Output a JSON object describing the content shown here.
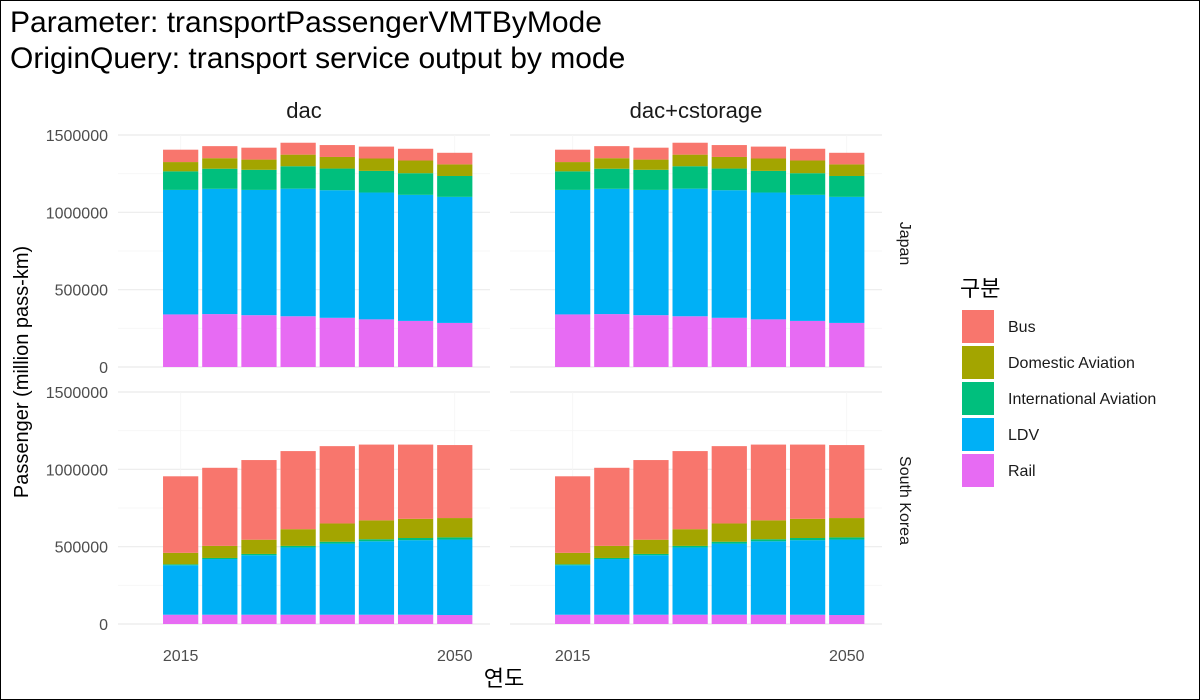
{
  "header": {
    "title_line1": "Parameter: transportPassengerVMTByMode",
    "title_line2": "OriginQuery: transport service output by mode"
  },
  "chart_data": {
    "type": "bar",
    "stacked": true,
    "xlabel": "연도",
    "ylabel": "Passenger (million pass-km)",
    "x": [
      2015,
      2020,
      2025,
      2030,
      2035,
      2040,
      2045,
      2050
    ],
    "x_tick_labels": [
      "2015",
      "2050"
    ],
    "x_ticks": [
      2015,
      2050
    ],
    "ylim": [
      0,
      1500000
    ],
    "y_ticks": [
      0,
      500000,
      1000000,
      1500000
    ],
    "y_tick_labels": [
      "0",
      "500000",
      "1000000",
      "1500000"
    ],
    "legend": {
      "title": "구분",
      "position": "right",
      "entries": [
        "Bus",
        "Domestic Aviation",
        "International Aviation",
        "LDV",
        "Rail"
      ]
    },
    "colors": {
      "Bus": "#F8766D",
      "Domestic Aviation": "#A3A500",
      "International Aviation": "#00BF7D",
      "LDV": "#00B0F6",
      "Rail": "#E76BF3"
    },
    "facet_columns": [
      "dac",
      "dac+cstorage"
    ],
    "facet_rows": [
      "Japan",
      "South Korea"
    ],
    "panels": [
      {
        "column": "dac",
        "row": "Japan",
        "series": [
          {
            "name": "Rail",
            "values": [
              340000,
              342000,
              335000,
              328000,
              318000,
              308000,
              298000,
              285000
            ]
          },
          {
            "name": "LDV",
            "values": [
              805000,
              810000,
              810000,
              825000,
              825000,
              820000,
              815000,
              815000
            ]
          },
          {
            "name": "International Aviation",
            "values": [
              120000,
              130000,
              130000,
              145000,
              140000,
              140000,
              140000,
              135000
            ]
          },
          {
            "name": "Domestic Aviation",
            "values": [
              60000,
              68000,
              66000,
              75000,
              75000,
              80000,
              82000,
              75000
            ]
          },
          {
            "name": "Bus",
            "values": [
              80000,
              78000,
              77000,
              77000,
              77000,
              77000,
              76000,
              75000
            ]
          }
        ]
      },
      {
        "column": "dac+cstorage",
        "row": "Japan",
        "series": [
          {
            "name": "Rail",
            "values": [
              340000,
              342000,
              335000,
              328000,
              318000,
              308000,
              298000,
              285000
            ]
          },
          {
            "name": "LDV",
            "values": [
              805000,
              810000,
              810000,
              825000,
              825000,
              820000,
              815000,
              815000
            ]
          },
          {
            "name": "International Aviation",
            "values": [
              120000,
              130000,
              130000,
              145000,
              140000,
              140000,
              140000,
              135000
            ]
          },
          {
            "name": "Domestic Aviation",
            "values": [
              60000,
              68000,
              66000,
              75000,
              75000,
              80000,
              82000,
              75000
            ]
          },
          {
            "name": "Bus",
            "values": [
              80000,
              78000,
              77000,
              77000,
              77000,
              77000,
              76000,
              75000
            ]
          }
        ]
      },
      {
        "column": "dac",
        "row": "South Korea",
        "series": [
          {
            "name": "Rail",
            "values": [
              60000,
              60000,
              60000,
              60000,
              60000,
              60000,
              60000,
              58000
            ]
          },
          {
            "name": "LDV",
            "values": [
              320000,
              360000,
              385000,
              435000,
              460000,
              475000,
              482000,
              488000
            ]
          },
          {
            "name": "International Aviation",
            "values": [
              6000,
              7000,
              8000,
              10000,
              12000,
              13000,
              14000,
              14000
            ]
          },
          {
            "name": "Domestic Aviation",
            "values": [
              74000,
              78000,
              92000,
              108000,
              118000,
              122000,
              124000,
              125000
            ]
          },
          {
            "name": "Bus",
            "values": [
              495000,
              505000,
              515000,
              505000,
              500000,
              490000,
              480000,
              472000
            ]
          }
        ]
      },
      {
        "column": "dac+cstorage",
        "row": "South Korea",
        "series": [
          {
            "name": "Rail",
            "values": [
              60000,
              60000,
              60000,
              60000,
              60000,
              60000,
              60000,
              58000
            ]
          },
          {
            "name": "LDV",
            "values": [
              320000,
              360000,
              385000,
              435000,
              460000,
              475000,
              482000,
              488000
            ]
          },
          {
            "name": "International Aviation",
            "values": [
              6000,
              7000,
              8000,
              10000,
              12000,
              13000,
              14000,
              14000
            ]
          },
          {
            "name": "Domestic Aviation",
            "values": [
              74000,
              78000,
              92000,
              108000,
              118000,
              122000,
              124000,
              125000
            ]
          },
          {
            "name": "Bus",
            "values": [
              495000,
              505000,
              515000,
              505000,
              500000,
              490000,
              480000,
              472000
            ]
          }
        ]
      }
    ]
  }
}
